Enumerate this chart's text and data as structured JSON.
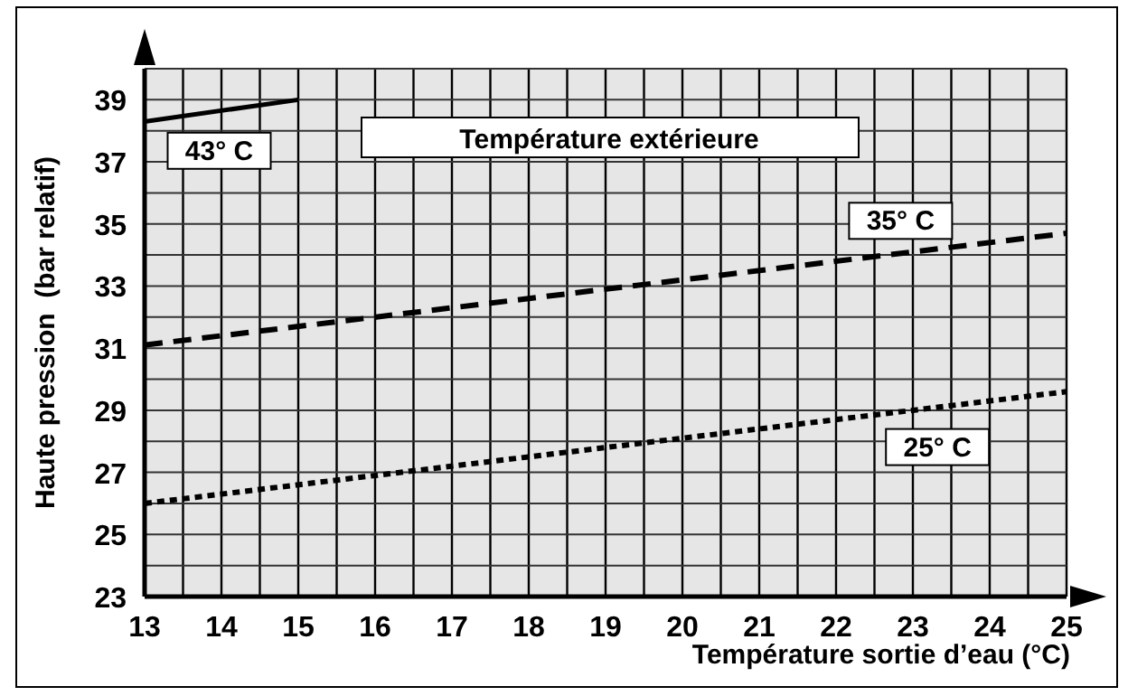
{
  "chart_data": {
    "type": "line",
    "legend_title": "Température extérieure",
    "xlabel": "Température sortie d’eau (°C)",
    "ylabel": "Haute pression  (bar relatif)",
    "xlim": [
      13,
      25
    ],
    "ylim": [
      23,
      40
    ],
    "xticks": [
      13,
      {
        "value": 13.5,
        "label": null
      },
      14,
      {
        "value": 14.5,
        "label": null
      },
      15,
      {
        "value": 15.5,
        "label": null
      },
      16,
      {
        "value": 16.5,
        "label": null
      },
      17,
      {
        "value": 17.5,
        "label": null
      },
      18,
      {
        "value": 18.5,
        "label": null
      },
      19,
      {
        "value": 19.5,
        "label": null
      },
      20,
      {
        "value": 20.5,
        "label": null
      },
      21,
      {
        "value": 21.5,
        "label": null
      },
      22,
      {
        "value": 22.5,
        "label": null
      },
      23,
      {
        "value": 23.5,
        "label": null
      },
      24,
      {
        "value": 24.5,
        "label": null
      },
      25
    ],
    "yticks": [
      23,
      {
        "value": 24,
        "label": null
      },
      25,
      {
        "value": 26,
        "label": null
      },
      27,
      {
        "value": 28,
        "label": null
      },
      29,
      {
        "value": 30,
        "label": null
      },
      31,
      {
        "value": 32,
        "label": null
      },
      33,
      {
        "value": 34,
        "label": null
      },
      35,
      {
        "value": 36,
        "label": null
      },
      37,
      {
        "value": 38,
        "label": null
      },
      39,
      {
        "value": 40,
        "label": null
      }
    ],
    "grid": true,
    "series": [
      {
        "name": "43° C",
        "color": "#000000",
        "line_style": "solid",
        "x": [
          13,
          15
        ],
        "values": [
          38.3,
          39
        ]
      },
      {
        "name": "35° C",
        "color": "#000000",
        "line_style": "dashed",
        "x": [
          13,
          25
        ],
        "values": [
          31.1,
          34.7
        ]
      },
      {
        "name": "25° C",
        "color": "#000000",
        "line_style": "dotted",
        "x": [
          13,
          25
        ],
        "values": [
          26,
          29.6
        ]
      }
    ]
  }
}
